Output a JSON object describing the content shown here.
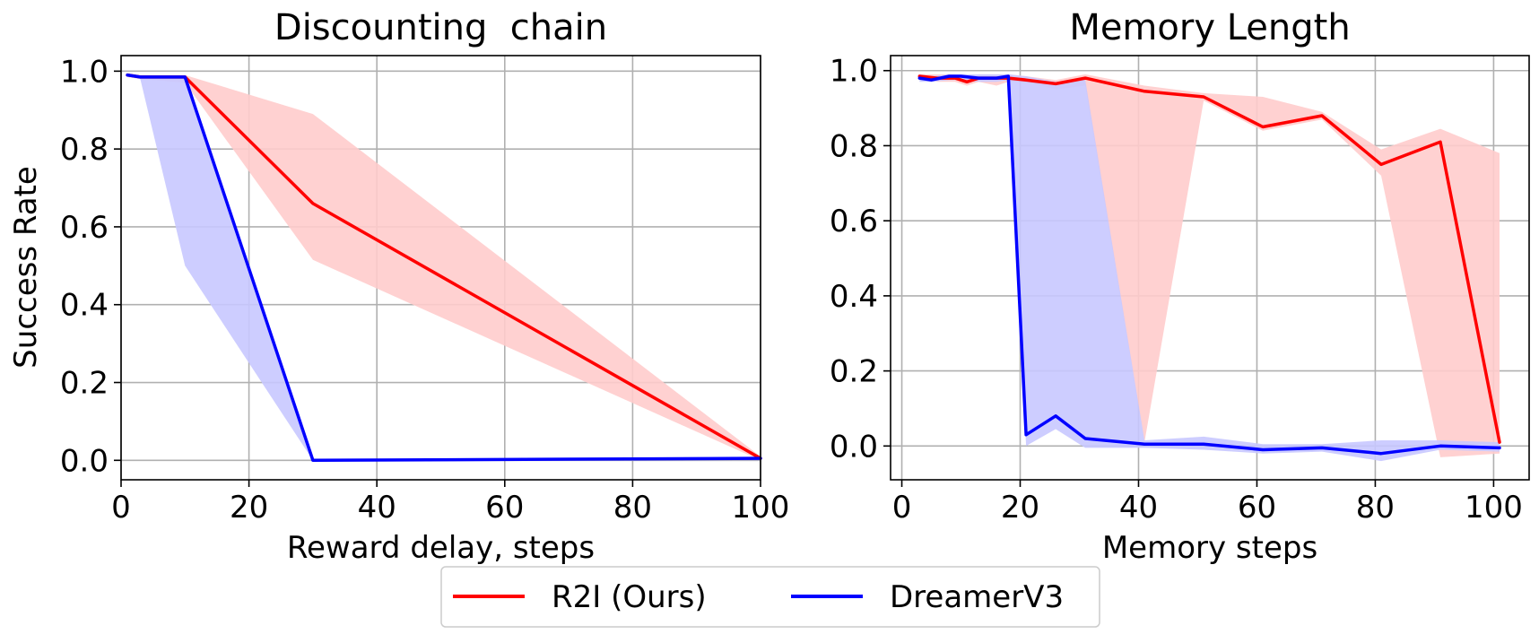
{
  "legend": {
    "entries": [
      {
        "label": "R2I (Ours)",
        "color": "#ff0000"
      },
      {
        "label": "DreamerV3",
        "color": "#0000ff"
      }
    ],
    "placement": "bottom-center"
  },
  "chart_data": [
    {
      "type": "line",
      "title": "Discounting  chain",
      "xlabel": "Reward delay, steps",
      "ylabel": "Success Rate",
      "xlim": [
        0,
        100
      ],
      "ylim": [
        -0.05,
        1.04
      ],
      "xticks": [
        0,
        20,
        40,
        60,
        80,
        100
      ],
      "yticks": [
        0.0,
        0.2,
        0.4,
        0.6,
        0.8,
        1.0
      ],
      "grid": true,
      "series": [
        {
          "name": "R2I (Ours)",
          "color": "#ff0000",
          "band_color": "#ffcccc",
          "x": [
            1,
            3,
            10,
            30,
            100
          ],
          "y": [
            0.99,
            0.985,
            0.985,
            0.66,
            0.005
          ],
          "lower": [
            0.985,
            0.98,
            0.97,
            0.515,
            0.0
          ],
          "upper": [
            0.995,
            0.99,
            0.99,
            0.89,
            0.01
          ]
        },
        {
          "name": "DreamerV3",
          "color": "#0000ff",
          "band_color": "#c8c8ff",
          "x": [
            1,
            3,
            10,
            30,
            100
          ],
          "y": [
            0.99,
            0.985,
            0.985,
            0.0,
            0.005
          ],
          "lower": [
            0.985,
            0.98,
            0.5,
            0.0,
            0.0
          ],
          "upper": [
            0.995,
            0.99,
            0.99,
            0.0,
            0.01
          ]
        }
      ]
    },
    {
      "type": "line",
      "title": "Memory Length",
      "xlabel": "Memory steps",
      "ylabel": "",
      "xlim": [
        -1.9,
        106
      ],
      "ylim": [
        -0.09,
        1.04
      ],
      "xticks": [
        0,
        20,
        40,
        60,
        80,
        100
      ],
      "yticks": [
        0.0,
        0.2,
        0.4,
        0.6,
        0.8,
        1.0
      ],
      "grid": true,
      "series": [
        {
          "name": "R2I (Ours)",
          "color": "#ff0000",
          "band_color": "#ffcccc",
          "x": [
            3,
            6,
            9,
            11,
            13,
            16,
            18,
            21,
            26,
            31,
            41,
            51,
            61,
            71,
            81,
            91,
            101
          ],
          "y": [
            0.985,
            0.98,
            0.98,
            0.97,
            0.98,
            0.98,
            0.98,
            0.975,
            0.965,
            0.98,
            0.945,
            0.93,
            0.85,
            0.88,
            0.75,
            0.81,
            0.01
          ],
          "lower": [
            0.98,
            0.97,
            0.97,
            0.96,
            0.97,
            0.96,
            0.97,
            0.97,
            0.95,
            0.96,
            0.01,
            0.92,
            0.84,
            0.87,
            0.72,
            -0.03,
            -0.02
          ],
          "upper": [
            0.99,
            0.99,
            0.99,
            0.98,
            0.99,
            0.99,
            0.99,
            0.985,
            0.975,
            0.99,
            0.96,
            0.94,
            0.93,
            0.89,
            0.79,
            0.845,
            0.78
          ]
        },
        {
          "name": "DreamerV3",
          "color": "#0000ff",
          "band_color": "#c8c8ff",
          "x": [
            3,
            5,
            8,
            10,
            13,
            16,
            18,
            21,
            26,
            31,
            41,
            51,
            61,
            71,
            81,
            91,
            101
          ],
          "y": [
            0.98,
            0.975,
            0.985,
            0.985,
            0.98,
            0.98,
            0.985,
            0.03,
            0.08,
            0.02,
            0.005,
            0.005,
            -0.01,
            -0.005,
            -0.02,
            0.0,
            -0.005
          ],
          "lower": [
            0.97,
            0.97,
            0.975,
            0.975,
            0.97,
            0.97,
            0.975,
            0.0,
            0.045,
            -0.005,
            -0.005,
            -0.01,
            -0.02,
            -0.015,
            -0.04,
            -0.01,
            -0.015
          ],
          "upper": [
            0.99,
            0.985,
            0.99,
            0.99,
            0.99,
            0.99,
            0.99,
            0.985,
            0.97,
            0.975,
            0.015,
            0.025,
            0.005,
            0.005,
            0.015,
            0.015,
            0.01
          ]
        }
      ]
    }
  ]
}
